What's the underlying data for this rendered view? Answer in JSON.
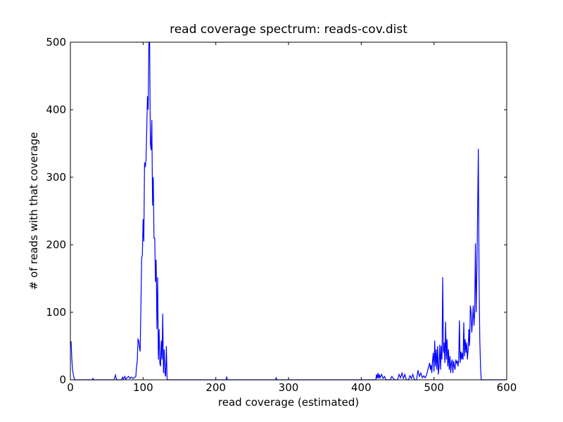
{
  "chart_data": {
    "type": "line",
    "title": "read coverage spectrum: reads-cov.dist",
    "xlabel": "read coverage (estimated)",
    "ylabel": "# of reads with that coverage",
    "color": "#0000ff",
    "grid": false,
    "xlim": [
      0,
      600
    ],
    "xticks": [
      0,
      100,
      200,
      300,
      400,
      500,
      600
    ],
    "ylim": [
      0,
      500
    ],
    "yticks": [
      0,
      100,
      200,
      300,
      400,
      500
    ],
    "x": [
      1,
      2,
      3,
      4,
      5,
      6,
      30,
      31,
      32,
      60,
      62,
      63,
      64,
      70,
      72,
      73,
      75,
      76,
      78,
      80,
      82,
      84,
      86,
      88,
      90,
      91,
      92,
      93,
      94,
      95,
      96,
      97,
      98,
      99,
      100,
      101,
      102,
      103,
      104,
      105,
      106,
      107,
      108,
      109,
      110,
      111,
      112,
      113,
      114,
      115,
      116,
      117,
      118,
      119,
      120,
      121,
      122,
      123,
      124,
      125,
      126,
      127,
      128,
      129,
      130,
      131,
      132,
      133,
      135,
      214,
      215,
      216,
      282,
      283,
      284,
      420,
      421,
      422,
      423,
      424,
      425,
      426,
      428,
      430,
      432,
      434,
      440,
      442,
      444,
      446,
      450,
      452,
      454,
      456,
      458,
      460,
      462,
      465,
      467,
      469,
      471,
      473,
      476,
      478,
      480,
      482,
      484,
      486,
      488,
      490,
      494,
      495,
      496,
      497,
      498,
      499,
      500,
      501,
      502,
      503,
      504,
      505,
      506,
      507,
      508,
      509,
      510,
      511,
      512,
      513,
      514,
      515,
      516,
      517,
      518,
      519,
      520,
      521,
      522,
      523,
      524,
      525,
      526,
      527,
      528,
      529,
      530,
      531,
      532,
      533,
      534,
      535,
      536,
      537,
      538,
      539,
      540,
      541,
      542,
      543,
      544,
      545,
      546,
      547,
      548,
      549,
      550,
      551,
      552,
      553,
      554,
      555,
      556,
      557,
      558,
      559,
      560,
      561,
      562,
      563,
      564,
      565,
      600
    ],
    "values": [
      57,
      30,
      15,
      8,
      3,
      0,
      0,
      2,
      0,
      0,
      7,
      2,
      0,
      0,
      4,
      1,
      5,
      1,
      3,
      5,
      2,
      4,
      2,
      3,
      5,
      20,
      28,
      60,
      58,
      48,
      42,
      110,
      180,
      185,
      238,
      205,
      322,
      315,
      325,
      370,
      420,
      400,
      500,
      500,
      350,
      340,
      385,
      258,
      300,
      210,
      210,
      145,
      178,
      75,
      152,
      30,
      75,
      25,
      20,
      58,
      30,
      98,
      10,
      45,
      10,
      5,
      50,
      0,
      0,
      0,
      4,
      0,
      0,
      3,
      0,
      0,
      8,
      2,
      10,
      2,
      8,
      3,
      8,
      2,
      5,
      0,
      0,
      5,
      2,
      0,
      0,
      8,
      3,
      10,
      2,
      8,
      0,
      0,
      6,
      2,
      8,
      0,
      0,
      14,
      5,
      10,
      3,
      6,
      3,
      8,
      25,
      15,
      22,
      10,
      28,
      40,
      12,
      58,
      20,
      45,
      15,
      50,
      8,
      20,
      52,
      15,
      50,
      30,
      152,
      40,
      55,
      25,
      86,
      30,
      60,
      20,
      45,
      15,
      35,
      10,
      25,
      30,
      10,
      28,
      20,
      15,
      30,
      25,
      28,
      20,
      30,
      88,
      25,
      42,
      30,
      40,
      30,
      85,
      35,
      60,
      40,
      55,
      30,
      45,
      75,
      50,
      110,
      100,
      70,
      90,
      110,
      80,
      100,
      202,
      100,
      160,
      250,
      342,
      150,
      60,
      20,
      0,
      0
    ]
  }
}
